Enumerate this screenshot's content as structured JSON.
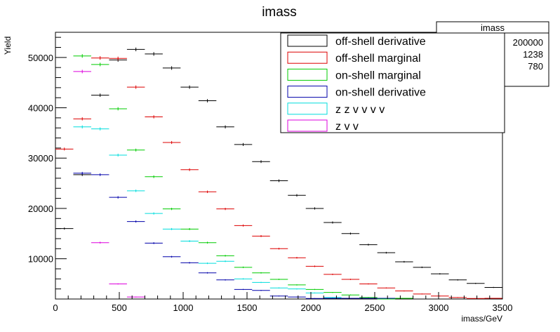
{
  "chart_data": {
    "type": "scatter",
    "title": "imass",
    "xlabel": "imass/GeV",
    "ylabel": "Yield",
    "xlim": [
      0,
      3500
    ],
    "ylim": [
      2000,
      55000
    ],
    "x_ticks": [
      0,
      500,
      1000,
      1500,
      2000,
      2500,
      3000,
      3500
    ],
    "y_ticks": [
      10000,
      20000,
      30000,
      40000,
      50000
    ],
    "bin_width": 140,
    "grid": false,
    "legend_position": "top-right",
    "series": [
      {
        "name": "off-shell derivative",
        "color": "#000000",
        "x": [
          70,
          210,
          350,
          490,
          630,
          770,
          910,
          1050,
          1190,
          1330,
          1470,
          1610,
          1750,
          1890,
          2030,
          2170,
          2310,
          2450,
          2590,
          2730,
          2870,
          3010,
          3150,
          3290,
          3430
        ],
        "y": [
          16000,
          26700,
          42500,
          49500,
          51600,
          50700,
          47900,
          44100,
          41400,
          36200,
          32700,
          29300,
          25500,
          22600,
          20000,
          17200,
          15000,
          12800,
          11200,
          9400,
          8300,
          7000,
          5800,
          5100,
          4300
        ]
      },
      {
        "name": "off-shell marginal",
        "color": "#dd0000",
        "x": [
          70,
          210,
          350,
          490,
          630,
          770,
          910,
          1050,
          1190,
          1330,
          1470,
          1610,
          1750,
          1890,
          2030,
          2170,
          2310,
          2450,
          2590,
          2730,
          2870,
          3010,
          3150,
          3290,
          3430
        ],
        "y": [
          31800,
          37800,
          49900,
          49800,
          44100,
          38200,
          33100,
          27700,
          23300,
          19900,
          16600,
          14500,
          12000,
          10200,
          8500,
          6900,
          5900,
          5000,
          4200,
          3600,
          3000,
          2600,
          2300,
          2100,
          1900
        ]
      },
      {
        "name": "on-shell marginal",
        "color": "#00cc00",
        "x": [
          210,
          350,
          490,
          630,
          770,
          910,
          1050,
          1190,
          1330,
          1470,
          1610,
          1750,
          1890,
          2030,
          2170,
          2310,
          2450,
          2590,
          2730
        ],
        "y": [
          50300,
          48600,
          39800,
          31600,
          26300,
          19900,
          15900,
          13200,
          10600,
          8300,
          7200,
          5900,
          4800,
          3900,
          3300,
          2800,
          2300,
          2000,
          1800
        ]
      },
      {
        "name": "on-shell derivative",
        "color": "#0000aa",
        "x": [
          210,
          350,
          490,
          630,
          770,
          910,
          1050,
          1190,
          1330,
          1470,
          1610,
          1750,
          1890,
          2030,
          2170,
          2310,
          2450,
          2590
        ],
        "y": [
          27000,
          26700,
          22200,
          17400,
          13100,
          10400,
          9200,
          7200,
          5800,
          3900,
          3700,
          2600,
          2400,
          2100,
          1900,
          1800,
          1700,
          1600
        ]
      },
      {
        "name": "z z v v v v",
        "color": "#00dddd",
        "x": [
          210,
          350,
          490,
          630,
          770,
          910,
          1050,
          1190,
          1330,
          1470,
          1610,
          1750,
          1890,
          2030,
          2170
        ],
        "y": [
          36200,
          35800,
          30600,
          23500,
          19000,
          15900,
          13500,
          9100,
          9500,
          6000,
          5300,
          4200,
          4000,
          3200,
          2300
        ]
      },
      {
        "name": "z v v",
        "color": "#dd00dd",
        "x": [
          210,
          350,
          490,
          630
        ],
        "y": [
          47200,
          13200,
          5000,
          2400
        ]
      }
    ],
    "stats_box": {
      "title": "imass",
      "rows": [
        "200000",
        "1238",
        "780"
      ]
    }
  }
}
